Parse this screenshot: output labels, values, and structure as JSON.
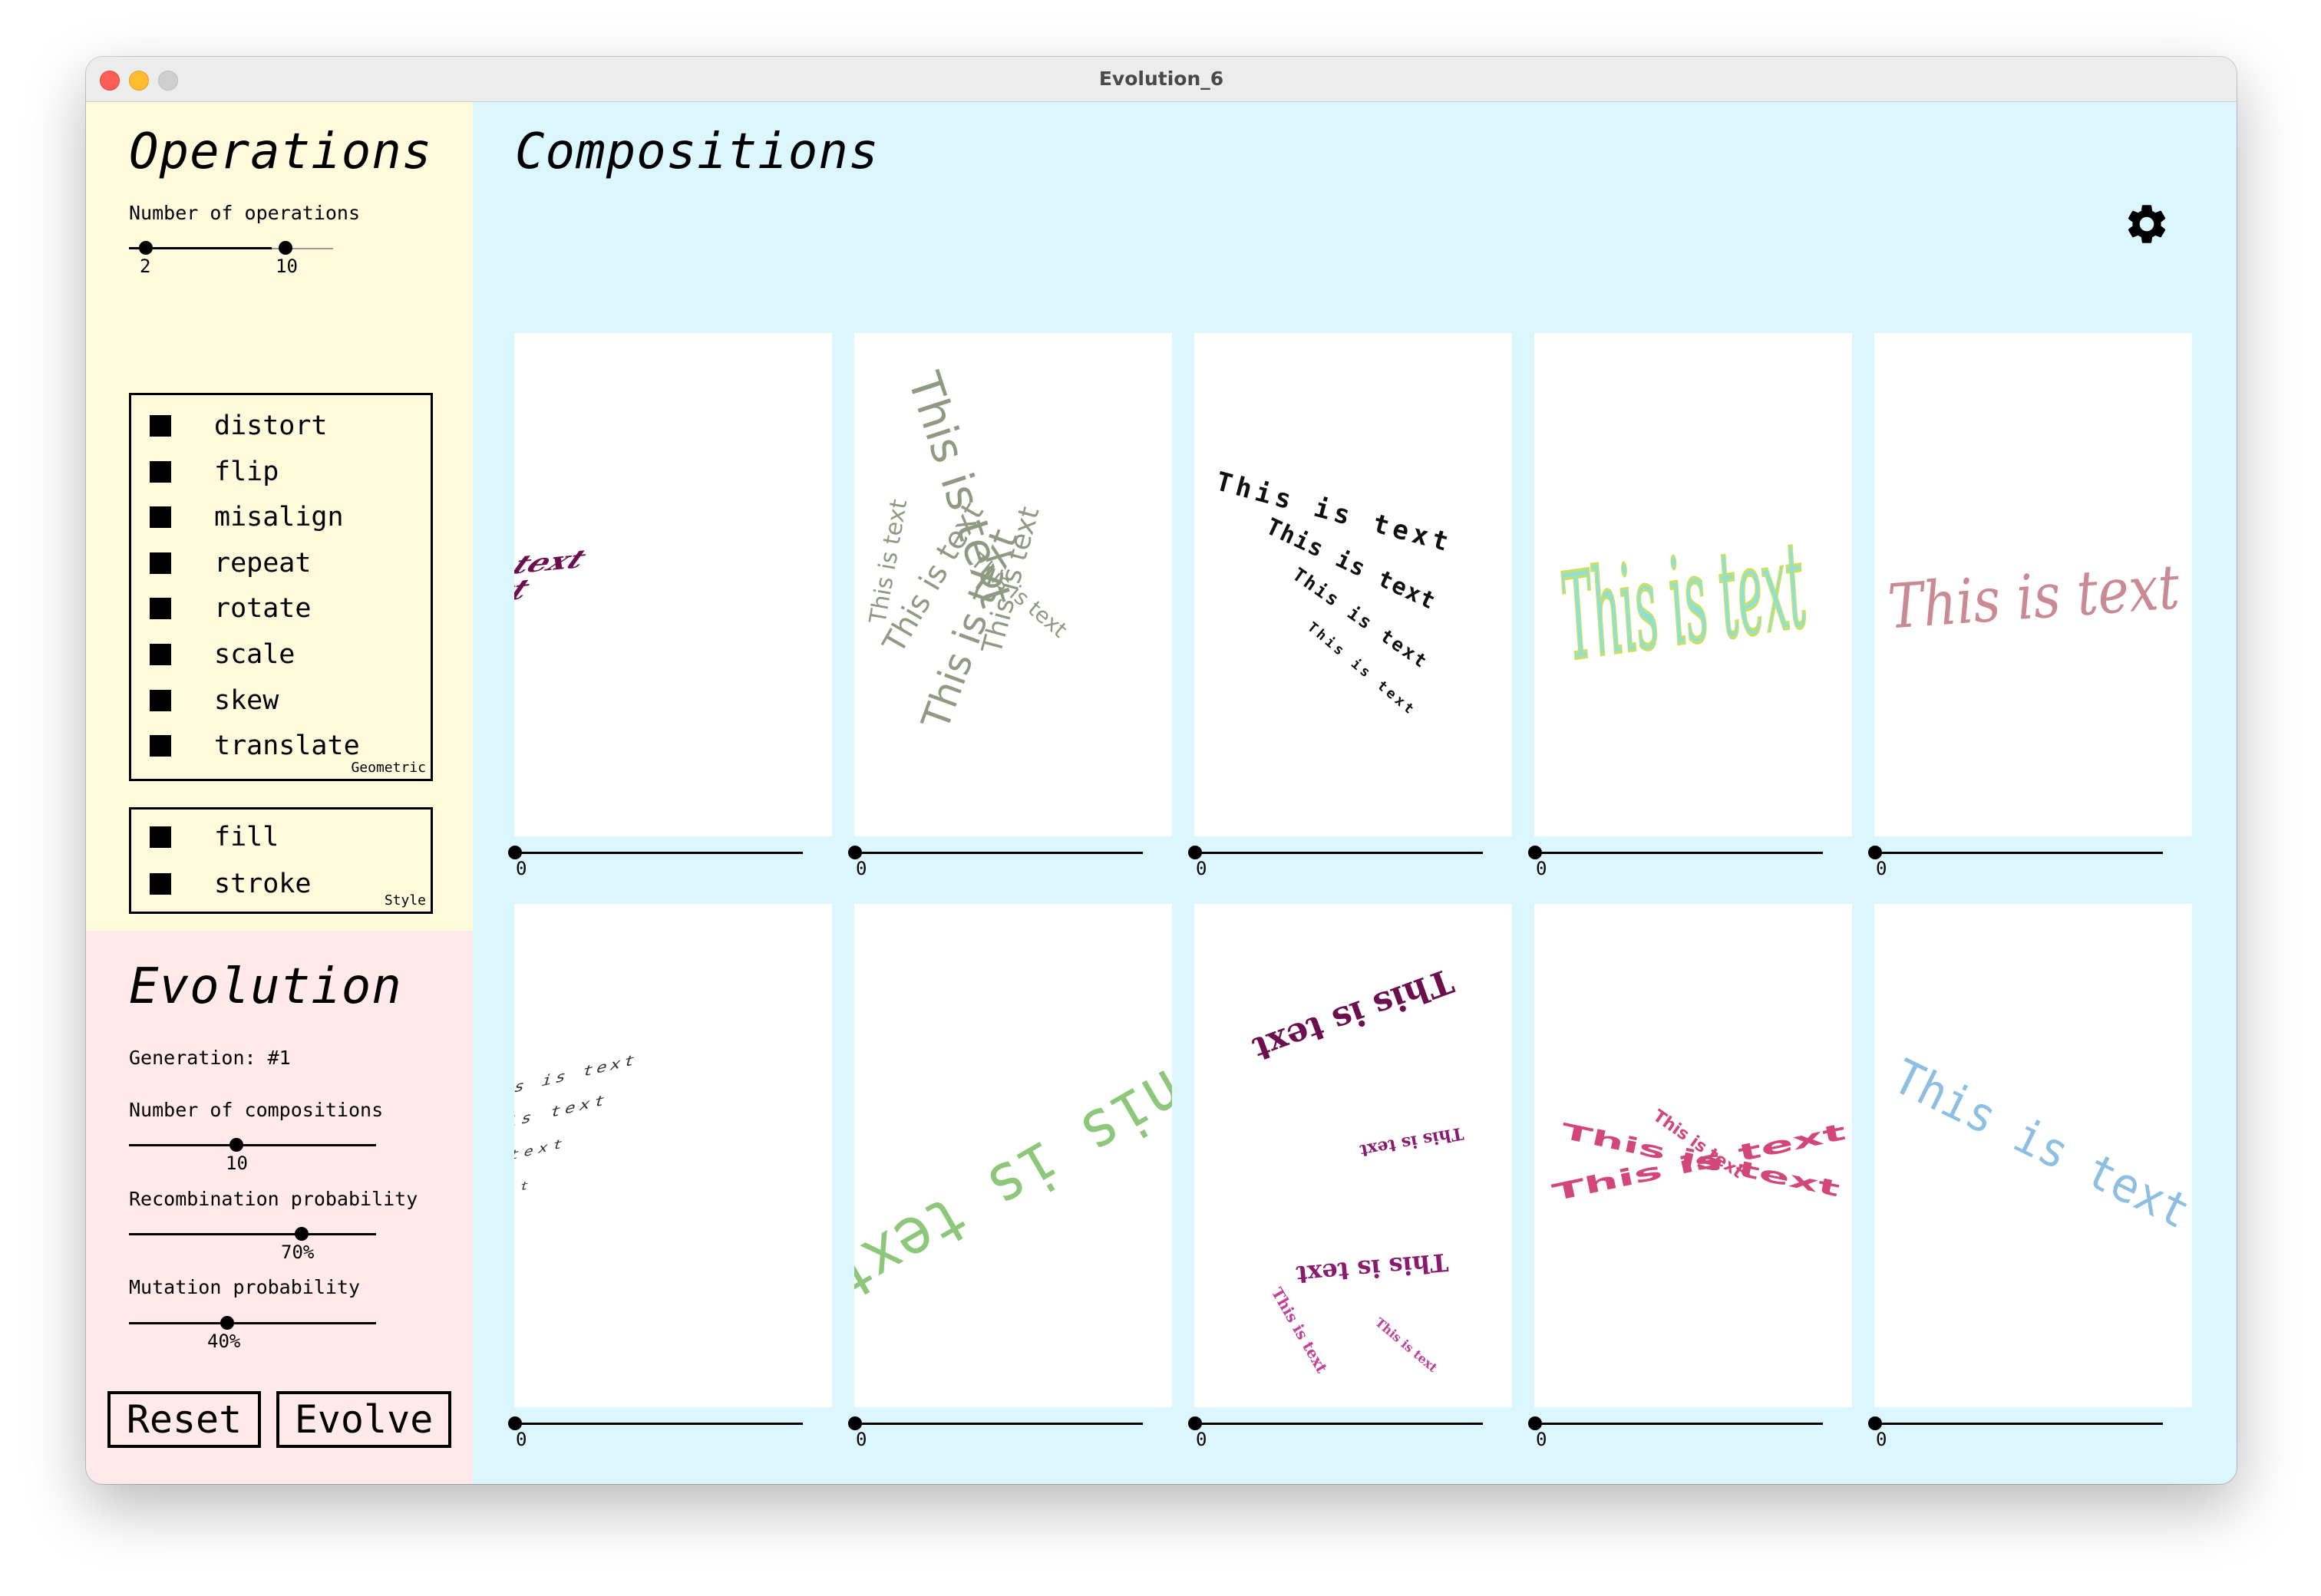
{
  "window": {
    "title": "Evolution_6"
  },
  "operations": {
    "title": "Operations",
    "count_label": "Number of operations",
    "count_min": "2",
    "count_max": "10",
    "geometric": {
      "tag": "Geometric",
      "items": [
        "distort",
        "flip",
        "misalign",
        "repeat",
        "rotate",
        "scale",
        "skew",
        "translate"
      ]
    },
    "style": {
      "tag": "Style",
      "items": [
        "fill",
        "stroke"
      ]
    }
  },
  "evolution": {
    "title": "Evolution",
    "generation": "Generation: #1",
    "compositions_label": "Number of compositions",
    "compositions_value": "10",
    "recombination_label": "Recombination probability",
    "recombination_value": "70%",
    "recombination_fraction": 0.7,
    "mutation_label": "Mutation probability",
    "mutation_value": "40%",
    "mutation_fraction": 0.4,
    "reset_label": "Reset",
    "evolve_label": "Evolve"
  },
  "compositions": {
    "title": "Compositions",
    "settings_icon": "gear-icon",
    "text": "This is text",
    "cards": [
      {
        "rating": "0",
        "color": "#6b0f4f"
      },
      {
        "rating": "0",
        "color": "#8f9a82"
      },
      {
        "rating": "0",
        "color": "#111111"
      },
      {
        "rating": "0",
        "color": "#c8e06a"
      },
      {
        "rating": "0",
        "color": "#c98a93"
      },
      {
        "rating": "0",
        "color": "#333333"
      },
      {
        "rating": "0",
        "color": "#8cc77a"
      },
      {
        "rating": "0",
        "color": "#8a1a6e"
      },
      {
        "rating": "0",
        "color": "#d2467a"
      },
      {
        "rating": "0",
        "color": "#8dbfe3"
      }
    ]
  }
}
